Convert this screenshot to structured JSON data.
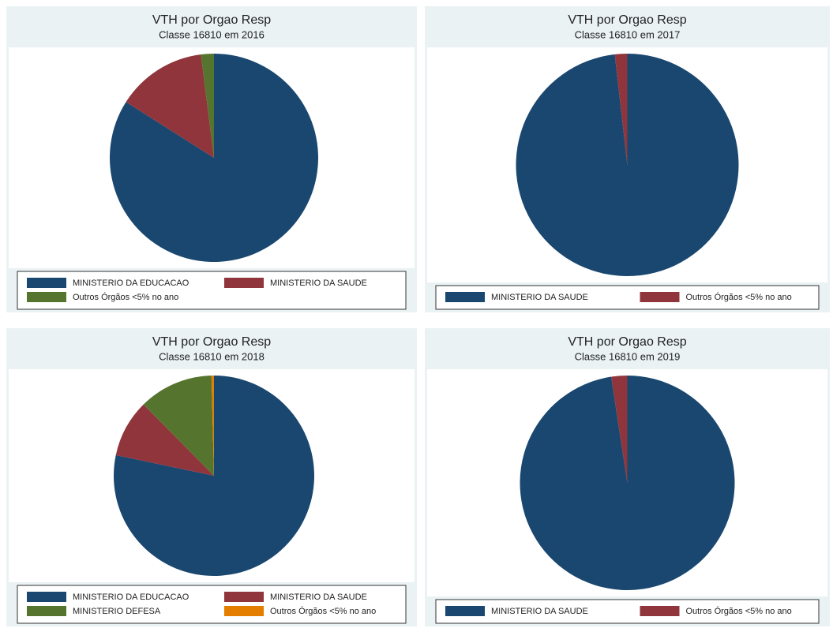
{
  "chart_data": [
    {
      "type": "pie",
      "title": "VTH por Orgao Resp",
      "subtitle": "Classe 16810 em 2016",
      "categories": [
        "MINISTERIO DA EDUCACAO",
        "MINISTERIO DA SAUDE",
        "Outros Órgãos <5% no ano"
      ],
      "values": [
        84,
        14,
        2
      ],
      "colors": [
        "#1a476f",
        "#90353b",
        "#55752f"
      ]
    },
    {
      "type": "pie",
      "title": "VTH por Orgao Resp",
      "subtitle": "Classe 16810 em 2017",
      "categories": [
        "MINISTERIO DA SAUDE",
        "Outros Órgãos <5% no ano"
      ],
      "values": [
        98.2,
        1.8
      ],
      "colors": [
        "#1a476f",
        "#90353b"
      ]
    },
    {
      "type": "pie",
      "title": "VTH por Orgao Resp",
      "subtitle": "Classe 16810 em 2018",
      "categories": [
        "MINISTERIO DA EDUCACAO",
        "MINISTERIO DA SAUDE",
        "MINISTERIO DEFESA",
        "Outros Órgãos <5% no ano"
      ],
      "values": [
        78.3,
        9.3,
        12,
        0.4
      ],
      "colors": [
        "#1a476f",
        "#90353b",
        "#55752f",
        "#e37e00"
      ]
    },
    {
      "type": "pie",
      "title": "VTH por Orgao Resp",
      "subtitle": "Classe 16810 em 2019",
      "categories": [
        "MINISTERIO DA SAUDE",
        "Outros Órgãos <5% no ano"
      ],
      "values": [
        97.6,
        2.4
      ],
      "colors": [
        "#1a476f",
        "#90353b"
      ]
    }
  ]
}
